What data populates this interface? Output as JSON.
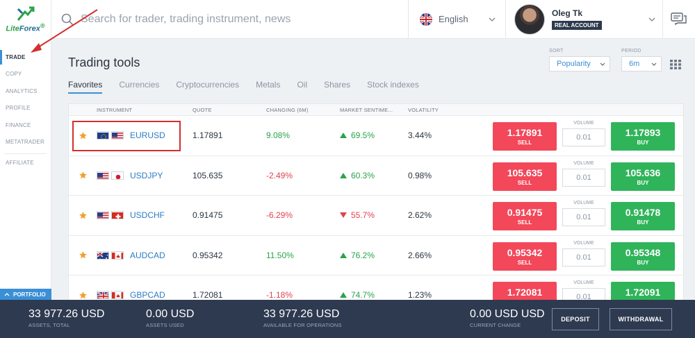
{
  "brand": {
    "logo_main": "Lite",
    "logo_accent": "Forex",
    "logo_reg": "®"
  },
  "sidebar": {
    "items": [
      {
        "label": "TRADE",
        "active": true
      },
      {
        "label": "COPY"
      },
      {
        "label": "ANALYTICS"
      },
      {
        "label": "PROFILE"
      },
      {
        "label": "FINANCE"
      },
      {
        "label": "METATRADER"
      }
    ],
    "affiliate_label": "AFFILIATE",
    "portfolio_label": "PORTFOLIO"
  },
  "header": {
    "search_placeholder": "Search for trader, trading instrument, news",
    "language": "English",
    "user_name": "Oleg Tk",
    "account_type": "REAL ACCOUNT"
  },
  "main": {
    "title": "Trading tools",
    "sort_label": "SORT",
    "sort_value": "Popularity",
    "period_label": "PERIOD",
    "period_value": "6m",
    "tabs": [
      {
        "label": "Favorites",
        "active": true
      },
      {
        "label": "Currencies"
      },
      {
        "label": "Cryptocurrencies"
      },
      {
        "label": "Metals"
      },
      {
        "label": "Oil"
      },
      {
        "label": "Shares"
      },
      {
        "label": "Stock indexes"
      }
    ],
    "columns": {
      "instrument": "INSTRUMENT",
      "quote": "QUOTE",
      "changing": "CHANGING (6M)",
      "sentiment": "MARKET SENTIME...",
      "volatility": "VOLATILITY"
    },
    "volume_label": "VOLUME",
    "sell_label": "SELL",
    "buy_label": "BUY",
    "rows": [
      {
        "symbol": "EURUSD",
        "flags": [
          "eu",
          "us"
        ],
        "quote": "1.17891",
        "change": "9.08%",
        "change_dir": "pos",
        "sentiment": "69.5%",
        "sentiment_dir": "up",
        "volatility": "3.44%",
        "sell": "1.17891",
        "buy": "1.17893",
        "volume": "0.01",
        "highlighted": true
      },
      {
        "symbol": "USDJPY",
        "flags": [
          "us",
          "jp"
        ],
        "quote": "105.635",
        "change": "-2.49%",
        "change_dir": "neg",
        "sentiment": "60.3%",
        "sentiment_dir": "up",
        "volatility": "0.98%",
        "sell": "105.635",
        "buy": "105.636",
        "volume": "0.01"
      },
      {
        "symbol": "USDCHF",
        "flags": [
          "us",
          "ch"
        ],
        "quote": "0.91475",
        "change": "-6.29%",
        "change_dir": "neg",
        "sentiment": "55.7%",
        "sentiment_dir": "down",
        "volatility": "2.62%",
        "sell": "0.91475",
        "buy": "0.91478",
        "volume": "0.01"
      },
      {
        "symbol": "AUDCAD",
        "flags": [
          "au",
          "ca"
        ],
        "quote": "0.95342",
        "change": "11.50%",
        "change_dir": "pos",
        "sentiment": "76.2%",
        "sentiment_dir": "up",
        "volatility": "2.66%",
        "sell": "0.95342",
        "buy": "0.95348",
        "volume": "0.01"
      },
      {
        "symbol": "GBPCAD",
        "flags": [
          "gb",
          "ca"
        ],
        "quote": "1.72081",
        "change": "-1.18%",
        "change_dir": "neg",
        "sentiment": "74.7%",
        "sentiment_dir": "up",
        "volatility": "1.23%",
        "sell": "1.72081",
        "buy": "1.72091",
        "volume": "0.01"
      }
    ]
  },
  "footer": {
    "assets_total": {
      "value": "33 977.26 USD",
      "label": "ASSETS, TOTAL"
    },
    "assets_used": {
      "value": "0.00 USD",
      "label": "ASSETS USED"
    },
    "available": {
      "value": "33 977.26 USD",
      "label": "AVAILABLE FOR OPERATIONS"
    },
    "current_change": {
      "value": "0.00 USD USD",
      "label": "CURRENT CHANGE"
    },
    "deposit_label": "DEPOSIT",
    "withdrawal_label": "WITHDRAWAL"
  },
  "colors": {
    "accent": "#3a8fd6",
    "sell": "#f2485a",
    "buy": "#2fb45a",
    "footer": "#2e3a50",
    "star": "#f0a030"
  }
}
